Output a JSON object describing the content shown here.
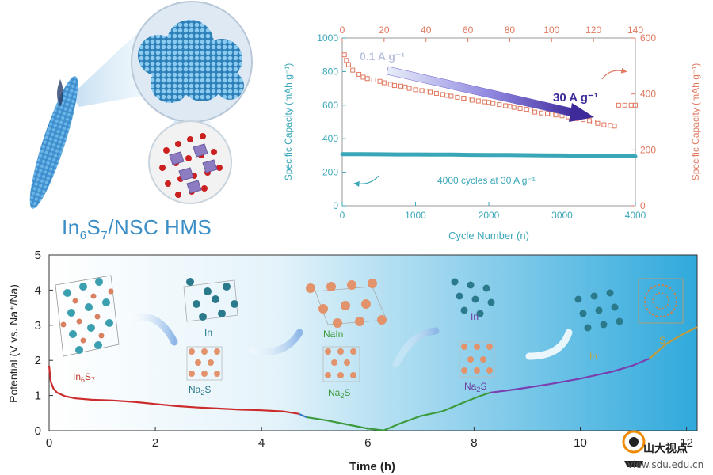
{
  "illustration": {
    "material_label": {
      "pre": "In",
      "sub1": "6",
      "mid": "S",
      "sub2": "7",
      "post": "/NSC HMS"
    }
  },
  "chart_data": [
    {
      "type": "scatter",
      "xlabel": "Cycle Number (n)",
      "ylabel_left": "Specific Capacity (mAh g⁻¹)",
      "ylabel_right": "Specific Capacity (mAh g⁻¹)",
      "x_bottom_ticks": [
        "0",
        "1000",
        "2000",
        "3000",
        "4000"
      ],
      "x_top_ticks": [
        "0",
        "20",
        "40",
        "60",
        "80",
        "100",
        "120",
        "140"
      ],
      "y_left_ticks": [
        "0",
        "200",
        "400",
        "600",
        "800",
        "1000"
      ],
      "y_right_ticks": [
        "0",
        "200",
        "400",
        "600"
      ],
      "xlim_bottom": [
        0,
        4000
      ],
      "xlim_top": [
        0,
        140
      ],
      "ylim_left": [
        0,
        1000
      ],
      "ylim_right": [
        0,
        600
      ],
      "annotations": {
        "low_rate": "0.1 A g⁻¹",
        "high_rate": "30 A g⁻¹",
        "long_cycle": "4000 cycles at 30 A g⁻¹"
      },
      "series": [
        {
          "axis": "top-right",
          "color": "#e0795f",
          "x": [
            1,
            2,
            3,
            5,
            8,
            10,
            12,
            15,
            18,
            20,
            23,
            25,
            28,
            30,
            32,
            35,
            38,
            40,
            42,
            45,
            48,
            50,
            52,
            55,
            58,
            60,
            62,
            65,
            68,
            70,
            72,
            75,
            78,
            80,
            82,
            85,
            88,
            90,
            92,
            95,
            98,
            100,
            102,
            105,
            108,
            110,
            112,
            115,
            118,
            120,
            122,
            125,
            128,
            130,
            132,
            135,
            138,
            140
          ],
          "y": [
            540,
            520,
            505,
            485,
            470,
            460,
            455,
            450,
            445,
            440,
            435,
            430,
            428,
            425,
            420,
            415,
            412,
            410,
            406,
            402,
            398,
            395,
            392,
            388,
            385,
            382,
            378,
            375,
            372,
            370,
            366,
            362,
            358,
            356,
            352,
            348,
            345,
            342,
            335,
            332,
            330,
            328,
            325,
            322,
            318,
            316,
            312,
            308,
            305,
            300,
            295,
            290,
            288,
            285,
            360,
            360,
            360,
            360
          ]
        },
        {
          "axis": "bottom-left",
          "color": "#3aa7b8",
          "x": [
            0,
            250,
            500,
            750,
            1000,
            1250,
            1500,
            1750,
            2000,
            2250,
            2500,
            2750,
            3000,
            3250,
            3500,
            3750,
            4000
          ],
          "y": [
            308,
            308,
            307,
            306,
            306,
            305,
            305,
            304,
            303,
            303,
            302,
            301,
            300,
            299,
            298,
            296,
            295
          ]
        }
      ]
    },
    {
      "type": "line",
      "xlabel": "Time (h)",
      "ylabel": "Potential (V vs. Na⁺/Na)",
      "x_ticks": [
        "0",
        "2",
        "4",
        "6",
        "8",
        "10",
        "12"
      ],
      "y_ticks": [
        "0",
        "1",
        "2",
        "3",
        "4",
        "5"
      ],
      "xlim": [
        0,
        12.2
      ],
      "ylim": [
        0,
        5
      ],
      "phase_labels": [
        {
          "pre": "In",
          "s1": "6",
          "mid": "S",
          "s2": "7",
          "color": "#c0392b"
        },
        {
          "text": "In",
          "color": "#2b7a8c"
        },
        {
          "pre": "Na",
          "s1": "2",
          "mid": "S",
          "s2": "",
          "color": "#2b7a8c"
        },
        {
          "text": "NaIn",
          "color": "#3a9a3a"
        },
        {
          "pre": "Na",
          "s1": "2",
          "mid": "S",
          "s2": "",
          "color": "#3a9a3a"
        },
        {
          "text": "In",
          "color": "#6b3fa0"
        },
        {
          "pre": "Na",
          "s1": "2",
          "mid": "S",
          "s2": "",
          "color": "#6b3fa0"
        },
        {
          "text": "In",
          "color": "#c7a13a"
        },
        {
          "text": "S",
          "color": "#c7a13a"
        }
      ],
      "series": [
        {
          "color": "#cc2b2b",
          "x": [
            0,
            0.03,
            0.08,
            0.15,
            0.3,
            0.5,
            0.8,
            1.2,
            1.6,
            2.0,
            2.4,
            2.8,
            3.2,
            3.6,
            4.0,
            4.4,
            4.7
          ],
          "y": [
            1.85,
            1.4,
            1.2,
            1.08,
            0.98,
            0.92,
            0.88,
            0.86,
            0.82,
            0.76,
            0.7,
            0.66,
            0.63,
            0.6,
            0.58,
            0.55,
            0.48
          ]
        },
        {
          "color": "#3a78c2",
          "x": [
            4.7,
            4.85
          ],
          "y": [
            0.48,
            0.38
          ]
        },
        {
          "color": "#3d9a3d",
          "x": [
            4.85,
            5.2,
            5.6,
            6.0,
            6.3,
            6.6,
            7.0,
            7.4,
            7.8,
            8.1,
            8.3
          ],
          "y": [
            0.38,
            0.3,
            0.18,
            0.06,
            0.01,
            0.2,
            0.42,
            0.55,
            0.8,
            0.98,
            1.08
          ]
        },
        {
          "color": "#7a3fb0",
          "x": [
            8.3,
            8.8,
            9.4,
            10.0,
            10.6,
            11.0,
            11.3
          ],
          "y": [
            1.08,
            1.18,
            1.32,
            1.48,
            1.68,
            1.86,
            2.05
          ]
        },
        {
          "color": "#c49a3a",
          "x": [
            11.3,
            11.6,
            11.9,
            12.2
          ],
          "y": [
            2.05,
            2.45,
            2.72,
            2.95
          ]
        }
      ]
    }
  ],
  "watermark": {
    "text": "view.sdu.edu.cn",
    "logo_text": "山大视点"
  }
}
